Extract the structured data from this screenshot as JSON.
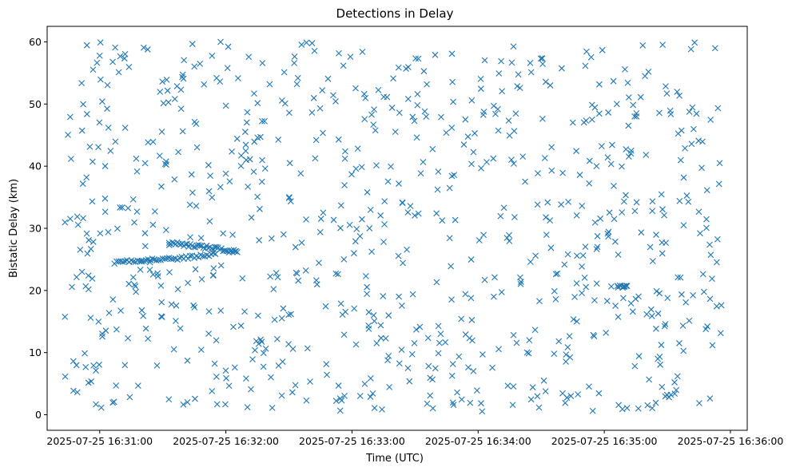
{
  "chart_data": {
    "type": "scatter",
    "title": "Detections in Delay",
    "xlabel": "Time (UTC)",
    "ylabel": "Bistatic Delay (km)",
    "x_tick_labels": [
      "2025-07-25 16:31:00",
      "2025-07-25 16:32:00",
      "2025-07-25 16:33:00",
      "2025-07-25 16:34:00",
      "2025-07-25 16:35:00",
      "2025-07-25 16:36:00"
    ],
    "y_ticks": [
      0,
      10,
      20,
      30,
      40,
      50,
      60
    ],
    "xlim": [
      "2025-07-25 16:30:35",
      "2025-07-25 16:36:08"
    ],
    "ylim": [
      -2.5,
      62.5
    ],
    "grid": false,
    "marker": "x",
    "color": "#1f77b4",
    "series_time_range": [
      "2025-07-25 16:30:43",
      "2025-07-25 16:35:56"
    ],
    "track_1": [
      {
        "x": "2025-07-25 16:31:07",
        "y": 24.5
      },
      {
        "x": "2025-07-25 16:31:14",
        "y": 24.8
      },
      {
        "x": "2025-07-25 16:31:21",
        "y": 24.9
      },
      {
        "x": "2025-07-25 16:31:28",
        "y": 25.0
      },
      {
        "x": "2025-07-25 16:31:35",
        "y": 25.1
      },
      {
        "x": "2025-07-25 16:31:42",
        "y": 25.3
      },
      {
        "x": "2025-07-25 16:31:49",
        "y": 25.6
      },
      {
        "x": "2025-07-25 16:31:56",
        "y": 25.9
      }
    ],
    "track_2": [
      {
        "x": "2025-07-25 16:31:33",
        "y": 27.7
      },
      {
        "x": "2025-07-25 16:31:40",
        "y": 27.4
      },
      {
        "x": "2025-07-25 16:31:47",
        "y": 27.1
      },
      {
        "x": "2025-07-25 16:31:54",
        "y": 26.8
      },
      {
        "x": "2025-07-25 16:32:01",
        "y": 26.4
      },
      {
        "x": "2025-07-25 16:32:06",
        "y": 26.1
      }
    ],
    "cluster": {
      "x": "2025-07-25 16:35:08",
      "y": 20.6
    }
  }
}
